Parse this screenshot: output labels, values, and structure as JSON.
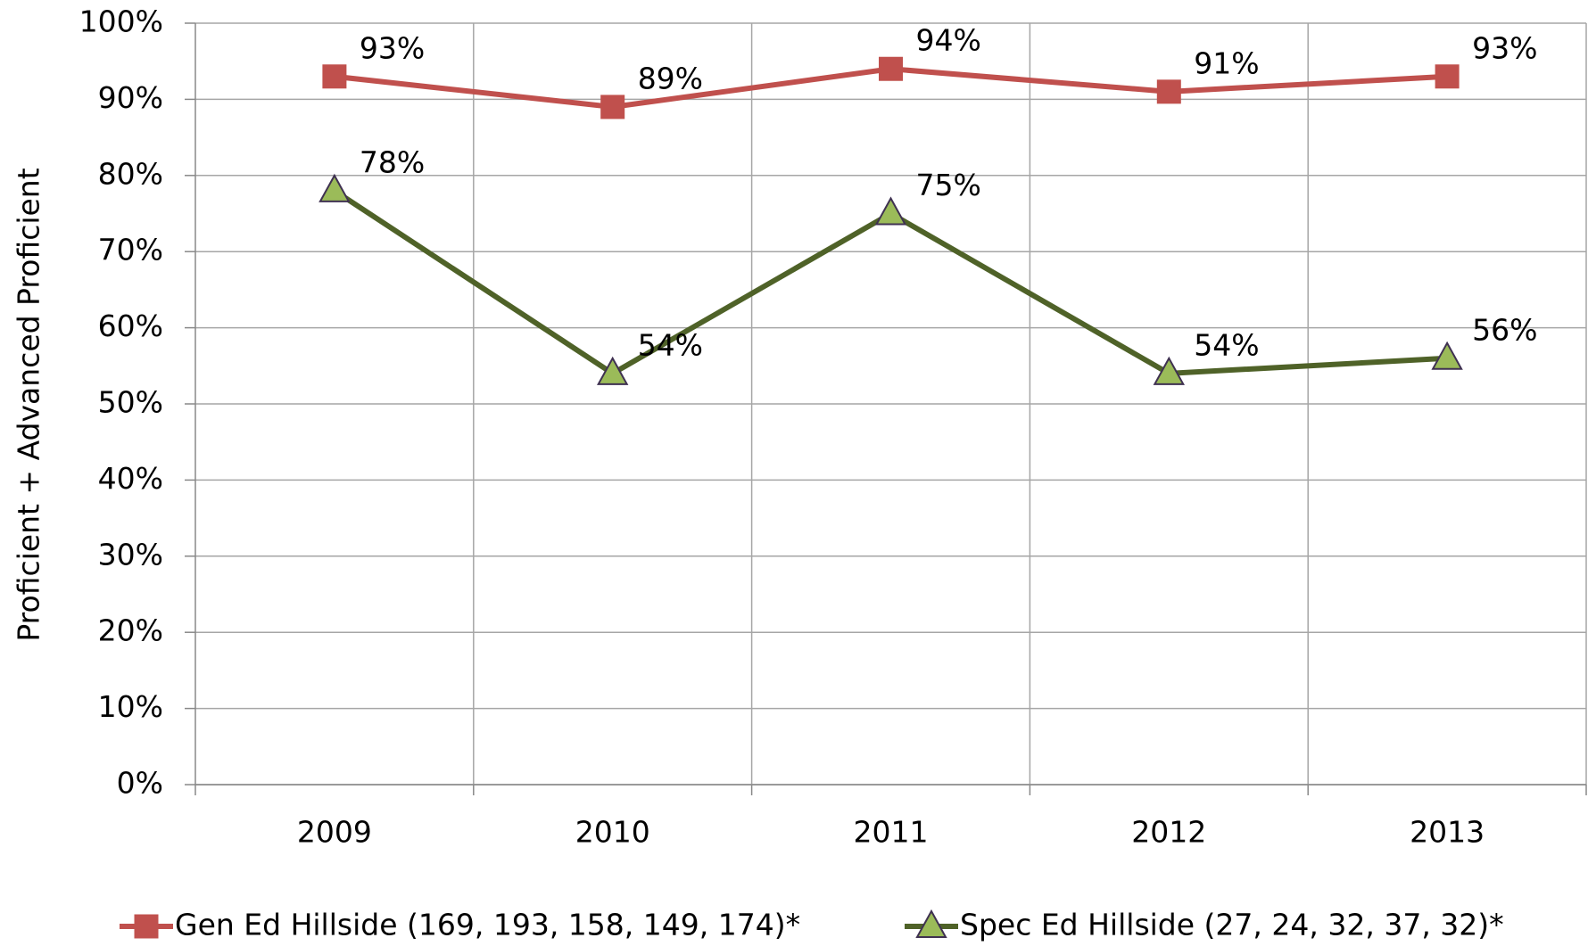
{
  "chart_data": {
    "type": "line",
    "categories": [
      "2009",
      "2010",
      "2011",
      "2012",
      "2013"
    ],
    "y_axis_label": "Proficient + Advanced Proficient",
    "ylim": [
      0,
      100
    ],
    "yticks": [
      {
        "value": 0,
        "label": "0%"
      },
      {
        "value": 10,
        "label": "10%"
      },
      {
        "value": 20,
        "label": "20%"
      },
      {
        "value": 30,
        "label": "30%"
      },
      {
        "value": 40,
        "label": "40%"
      },
      {
        "value": 50,
        "label": "50%"
      },
      {
        "value": 60,
        "label": "60%"
      },
      {
        "value": 70,
        "label": "70%"
      },
      {
        "value": 80,
        "label": "80%"
      },
      {
        "value": 90,
        "label": "90%"
      },
      {
        "value": 100,
        "label": "100%"
      }
    ],
    "grid": true,
    "legend": "bottom",
    "series": [
      {
        "name": "Gen Ed Hillside (169, 193, 158, 149, 174)*",
        "color": "#c0504d",
        "marker": "square",
        "marker_color": "#c0504d",
        "values": [
          93,
          89,
          94,
          91,
          93
        ],
        "value_labels": [
          "93%",
          "89%",
          "94%",
          "91%",
          "93%"
        ]
      },
      {
        "name": "Spec Ed Hillside (27, 24, 32, 37, 32)*",
        "color": "#4f6228",
        "marker": "triangle",
        "marker_color": "#9bbb59",
        "values": [
          78,
          54,
          75,
          54,
          56
        ],
        "value_labels": [
          "78%",
          "54%",
          "75%",
          "54%",
          "56%"
        ]
      }
    ]
  }
}
